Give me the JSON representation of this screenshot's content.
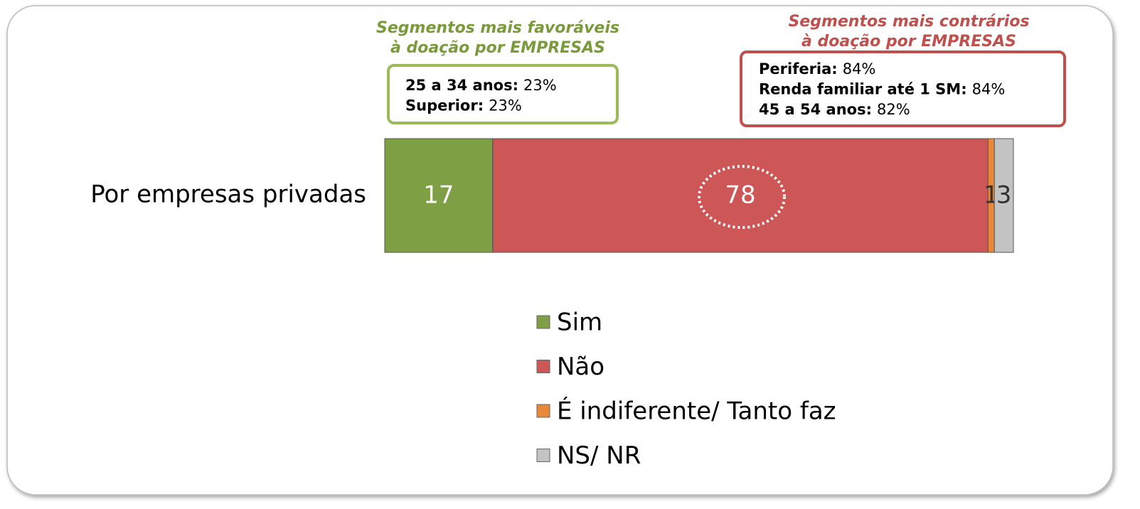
{
  "chart_data": {
    "type": "stacked_bar_horizontal",
    "categories": [
      "Por empresas privadas"
    ],
    "series": [
      {
        "name": "Sim",
        "color": "#7f9f45",
        "values": [
          17
        ]
      },
      {
        "name": "Não",
        "color": "#cd5656",
        "values": [
          78
        ]
      },
      {
        "name": "É indiferente/ Tanto faz",
        "color": "#e8883a",
        "values": [
          1
        ]
      },
      {
        "name": "NS/ NR",
        "color": "#c3c3c3",
        "values": [
          3
        ]
      }
    ],
    "annotations": [
      {
        "title": [
          "Segmentos mais favoráveis",
          "à doação por EMPRESAS"
        ],
        "color": "#7a9a3c",
        "border": "#9bbb59",
        "items": [
          {
            "label": "25 a 34 anos:",
            "value": "23%"
          },
          {
            "label": "Superior:",
            "value": "23%"
          }
        ]
      },
      {
        "title": [
          "Segmentos mais contrários",
          "à doação por EMPRESAS"
        ],
        "color": "#c0504d",
        "border": "#c0504d",
        "items": [
          {
            "label": "Periferia:",
            "value": "84%"
          },
          {
            "label": "Renda familiar até 1 SM:",
            "value": "84%"
          },
          {
            "label": "45 a 54 anos:",
            "value": "82%"
          }
        ]
      }
    ]
  }
}
